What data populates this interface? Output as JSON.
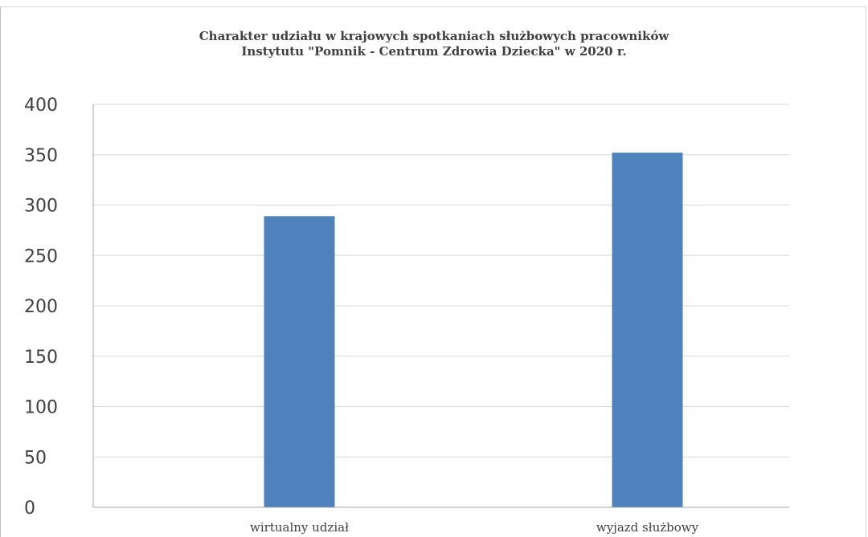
{
  "chart_data": {
    "type": "bar",
    "title_lines": [
      "Charakter udziału w  krajowych spotkaniach  służbowych pracowników",
      "Instytutu \"Pomnik - Centrum Zdrowia Dziecka\" w 2020 r."
    ],
    "categories": [
      "wirtualny udział",
      "wyjazd służbowy"
    ],
    "values": [
      289,
      352
    ],
    "yticks": [
      0,
      50,
      100,
      150,
      200,
      250,
      300,
      350,
      400
    ],
    "ylim": [
      0,
      400
    ],
    "grid": true,
    "legend": "none",
    "bar_color": "#4f81bd",
    "grid_color": "#d9d9d9",
    "axis_color": "#a6a6a6",
    "text_color": "#404040"
  }
}
